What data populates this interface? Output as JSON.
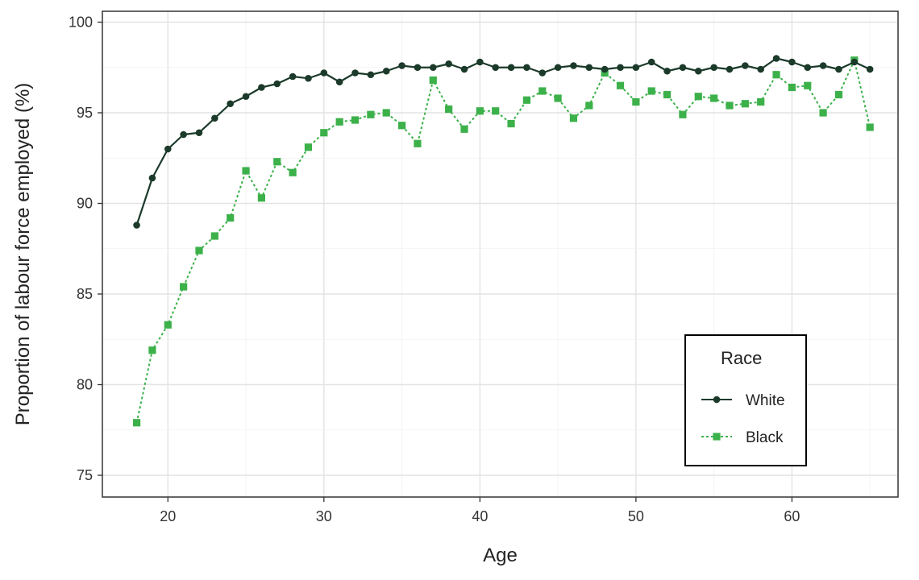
{
  "chart_data": {
    "type": "line",
    "title": "",
    "xlabel": "Age",
    "ylabel": "Proportion of labour force employed (%)",
    "xlim": [
      15.8,
      66.8
    ],
    "ylim": [
      73.8,
      100.6
    ],
    "x_ticks": [
      20,
      30,
      40,
      50,
      60
    ],
    "y_ticks": [
      75,
      80,
      85,
      90,
      95,
      100
    ],
    "grid": true,
    "legend": {
      "title": "Race",
      "position": "bottom-right"
    },
    "x": [
      18,
      19,
      20,
      21,
      22,
      23,
      24,
      25,
      26,
      27,
      28,
      29,
      30,
      31,
      32,
      33,
      34,
      35,
      36,
      37,
      38,
      39,
      40,
      41,
      42,
      43,
      44,
      45,
      46,
      47,
      48,
      49,
      50,
      51,
      52,
      53,
      54,
      55,
      56,
      57,
      58,
      59,
      60,
      61,
      62,
      63,
      64,
      65
    ],
    "series": [
      {
        "name": "White",
        "color": "#1b3a2a",
        "marker": "circle",
        "line_style": "solid",
        "values": [
          88.8,
          91.4,
          93.0,
          93.8,
          93.9,
          94.7,
          95.5,
          95.9,
          96.4,
          96.6,
          97.0,
          96.9,
          97.2,
          96.7,
          97.2,
          97.1,
          97.3,
          97.6,
          97.5,
          97.5,
          97.7,
          97.4,
          97.8,
          97.5,
          97.5,
          97.5,
          97.2,
          97.5,
          97.6,
          97.5,
          97.4,
          97.5,
          97.5,
          97.8,
          97.3,
          97.5,
          97.3,
          97.5,
          97.4,
          97.6,
          97.4,
          98.0,
          97.8,
          97.5,
          97.6,
          97.4,
          97.8,
          97.4
        ]
      },
      {
        "name": "Black",
        "color": "#3cb14a",
        "marker": "square",
        "line_style": "dotted",
        "values": [
          77.9,
          81.9,
          83.3,
          85.4,
          87.4,
          88.2,
          89.2,
          91.8,
          90.3,
          92.3,
          91.7,
          93.1,
          93.9,
          94.5,
          94.6,
          94.9,
          95.0,
          94.3,
          93.3,
          96.8,
          95.2,
          94.1,
          95.1,
          95.1,
          94.4,
          95.7,
          96.2,
          95.8,
          94.7,
          95.4,
          97.2,
          96.5,
          95.6,
          96.2,
          96.0,
          94.9,
          95.9,
          95.8,
          95.4,
          95.5,
          95.6,
          97.1,
          96.4,
          96.5,
          95.0,
          96.0,
          97.9,
          94.2
        ]
      }
    ]
  }
}
